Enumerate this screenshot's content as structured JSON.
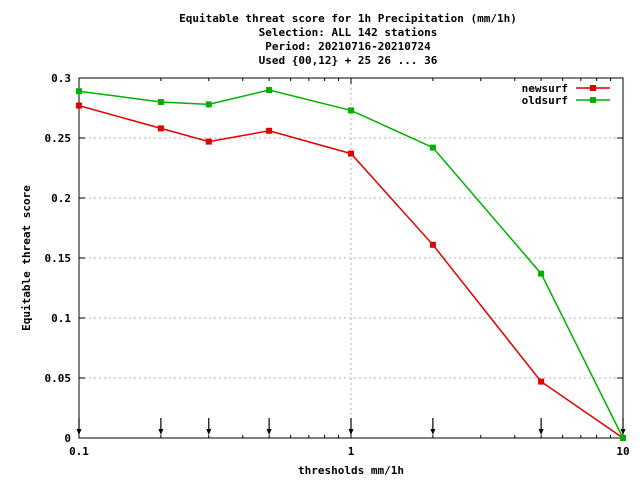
{
  "chart_data": {
    "type": "line",
    "title_lines": [
      "Equitable threat score  for 1h Precipitation (mm/1h)",
      "Selection: ALL    142 stations",
      "Period: 20210716-20210724",
      "Used {00,12} + 25 26 ... 36"
    ],
    "xlabel": "thresholds mm/1h",
    "ylabel": "Equitable threat score",
    "x_scale": "log",
    "xlim": [
      0.1,
      10
    ],
    "ylim": [
      0,
      0.3
    ],
    "x_ticks": [
      {
        "value": 0.1,
        "label": "0.1"
      },
      {
        "value": 1,
        "label": "1"
      },
      {
        "value": 10,
        "label": "10"
      }
    ],
    "y_ticks": [
      {
        "value": 0,
        "label": "0"
      },
      {
        "value": 0.05,
        "label": "0.05"
      },
      {
        "value": 0.1,
        "label": "0.1"
      },
      {
        "value": 0.15,
        "label": "0.15"
      },
      {
        "value": 0.2,
        "label": "0.2"
      },
      {
        "value": 0.25,
        "label": "0.25"
      },
      {
        "value": 0.3,
        "label": "0.3"
      }
    ],
    "grid": true,
    "legend_position": "top-right",
    "x": [
      0.1,
      0.2,
      0.3,
      0.5,
      1,
      2,
      5,
      10
    ],
    "series": [
      {
        "name": "newsurf",
        "color": "#e00000",
        "values": [
          0.277,
          0.258,
          0.247,
          0.256,
          0.237,
          0.161,
          0.047,
          0.0
        ]
      },
      {
        "name": "oldsurf",
        "color": "#00b000",
        "values": [
          0.289,
          0.28,
          0.278,
          0.29,
          0.273,
          0.242,
          0.137,
          0.0
        ]
      }
    ],
    "arrow_markers_x": [
      0.1,
      0.2,
      0.3,
      0.5,
      1,
      2,
      5,
      10
    ]
  }
}
